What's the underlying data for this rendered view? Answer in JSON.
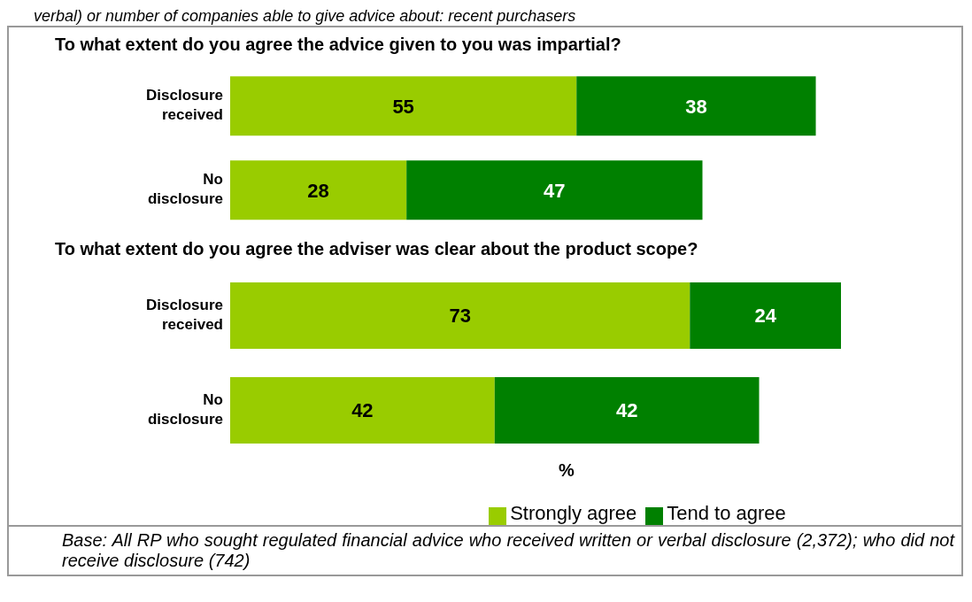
{
  "chart_data": [
    {
      "type": "bar",
      "orientation": "horizontal",
      "stacked": true,
      "title": "To what extent do you agree the advice given to you was impartial?",
      "categories": [
        "Disclosure received",
        "No disclosure"
      ],
      "series": [
        {
          "color": "#99cc00",
          "values": [
            55,
            28
          ]
        },
        {
          "color": "#008000",
          "values": [
            38,
            47
          ]
        }
      ],
      "tick_labels": "y",
      "data_labels": true,
      "legend": false,
      "grid": false,
      "annotations": [
        "verbal) or number of companies able to give advice about: recent purchasers"
      ]
    },
    {
      "type": "bar",
      "orientation": "horizontal",
      "stacked": true,
      "title": "To what extent do you agree the adviser was clear about the product scope?",
      "categories": [
        "Disclosure received",
        "No disclosure"
      ],
      "series": [
        {
          "name": "Strongly agree",
          "color": "#99cc00",
          "values": [
            73,
            42
          ]
        },
        {
          "name": "Tend to agree",
          "color": "#008000",
          "values": [
            24,
            42
          ]
        }
      ],
      "tick_labels": "y",
      "data_labels": true,
      "legend": "bottom",
      "grid": false,
      "xlabel": "%",
      "annotations": [
        "Base: All RP who sought regulated financial advice who received written or verbal disclosure (2,372); who did not receive disclosure (742)"
      ]
    }
  ]
}
